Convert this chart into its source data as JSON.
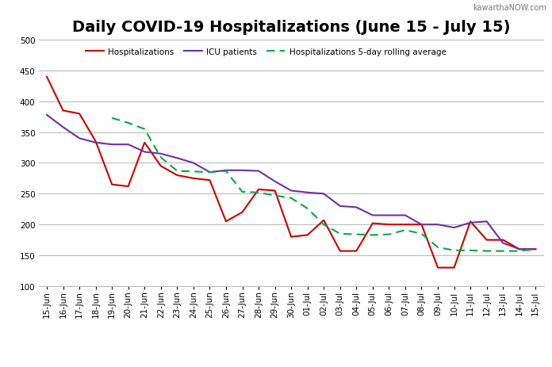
{
  "title": "Daily COVID-19 Hospitalizations (June 15 - July 15)",
  "watermark": "kawarthaNOW.com",
  "labels": [
    "15-Jun",
    "16-Jun",
    "17-Jun",
    "18-Jun",
    "19-Jun",
    "20-Jun",
    "21-Jun",
    "22-Jun",
    "23-Jun",
    "24-Jun",
    "25-Jun",
    "26-Jun",
    "27-Jun",
    "28-Jun",
    "29-Jun",
    "30-Jun",
    "01-Jul",
    "02-Jul",
    "03-Jul",
    "04-Jul",
    "05-Jul",
    "06-Jul",
    "07-Jul",
    "08-Jul",
    "09-Jul",
    "10-Jul",
    "11-Jul",
    "12-Jul",
    "13-Jul",
    "14-Jul",
    "15-Jul"
  ],
  "hospitalizations": [
    440,
    385,
    380,
    335,
    265,
    262,
    333,
    295,
    280,
    275,
    272,
    205,
    220,
    257,
    255,
    180,
    183,
    207,
    157,
    157,
    202,
    200,
    200,
    200,
    130,
    130,
    205,
    175,
    175,
    160,
    160
  ],
  "icu": [
    378,
    358,
    340,
    333,
    330,
    330,
    318,
    315,
    308,
    300,
    285,
    288,
    288,
    287,
    270,
    255,
    252,
    250,
    230,
    228,
    215,
    215,
    215,
    200,
    200,
    195,
    203,
    205,
    170,
    160,
    160
  ],
  "rolling_avg": [
    null,
    null,
    null,
    null,
    373,
    365,
    355,
    309,
    287,
    286,
    285,
    287,
    253,
    252,
    247,
    243,
    226,
    200,
    185,
    184,
    183,
    184,
    191,
    185,
    163,
    158,
    158,
    157,
    157,
    157,
    160
  ],
  "ylim": [
    100,
    500
  ],
  "yticks": [
    100,
    150,
    200,
    250,
    300,
    350,
    400,
    450,
    500
  ],
  "hosp_color": "#cc0000",
  "icu_color": "#7030a0",
  "rolling_color": "#00aa44",
  "bg_color": "#ffffff",
  "grid_color": "#bbbbbb",
  "legend_hosp": "Hospitalizations",
  "legend_icu": "ICU patients",
  "legend_rolling": "Hospitalizations 5-day rolling average",
  "title_fontsize": 14,
  "tick_fontsize": 7.5,
  "watermark_fontsize": 7
}
